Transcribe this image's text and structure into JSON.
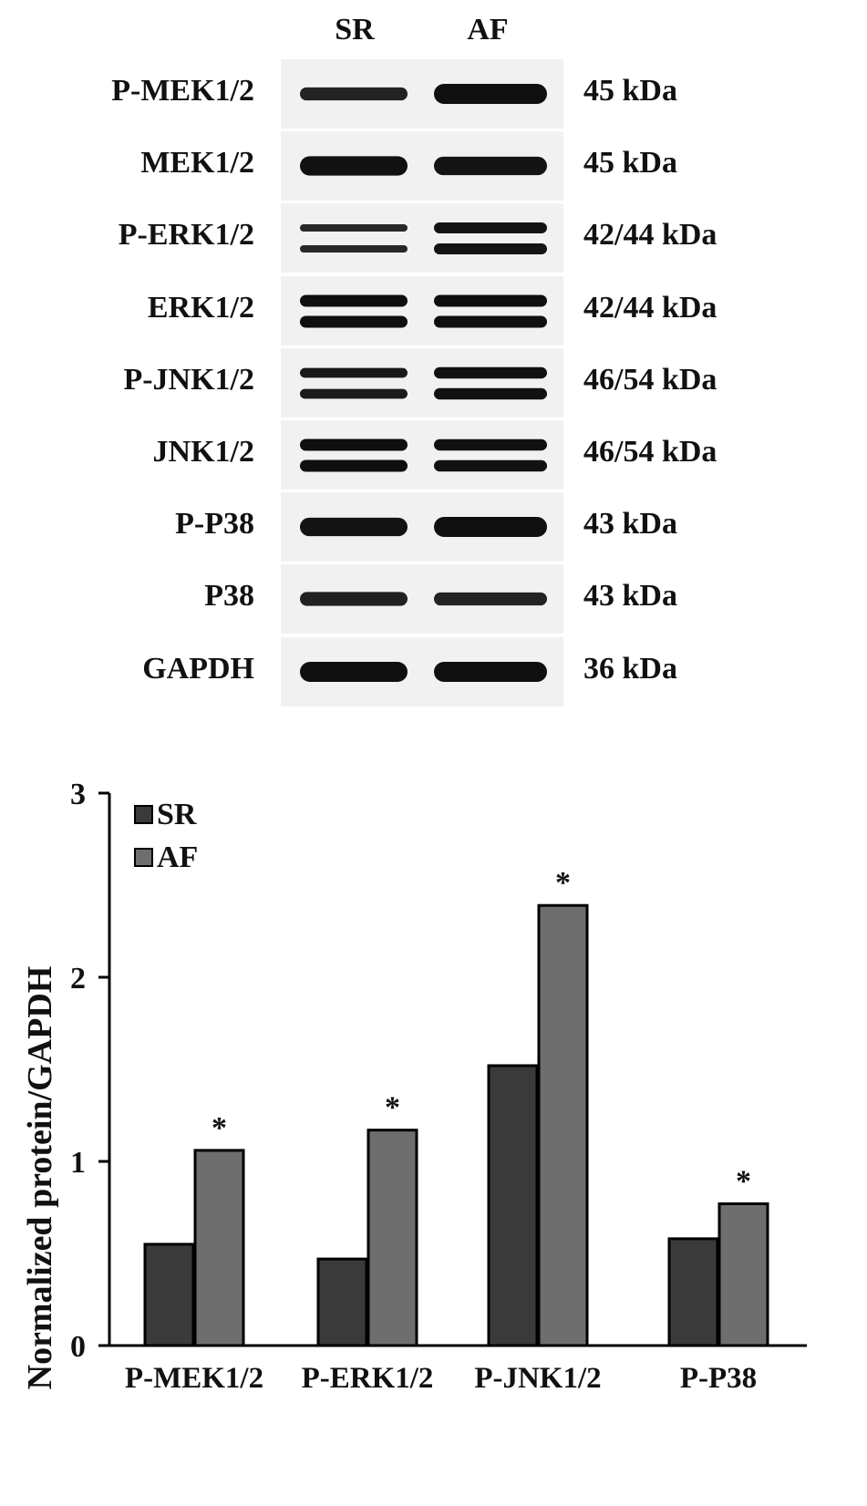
{
  "blot": {
    "lanes": [
      "SR",
      "AF"
    ],
    "rows": [
      {
        "label": "P-MEK1/2",
        "size": "45 kDa",
        "bands": 1,
        "sr": 0.55,
        "af": 1.0
      },
      {
        "label": "MEK1/2",
        "size": "45 kDa",
        "bands": 1,
        "sr": 0.95,
        "af": 0.9
      },
      {
        "label": "P-ERK1/2",
        "size": "42/44 kDa",
        "bands": 2,
        "sr": 0.45,
        "af": 0.9
      },
      {
        "label": "ERK1/2",
        "size": "42/44 kDa",
        "bands": 2,
        "sr": 1.0,
        "af": 1.0
      },
      {
        "label": "P-JNK1/2",
        "size": "46/54 kDa",
        "bands": 2,
        "sr": 0.75,
        "af": 0.95
      },
      {
        "label": "JNK1/2",
        "size": "46/54 kDa",
        "bands": 2,
        "sr": 1.0,
        "af": 0.95
      },
      {
        "label": "P-P38",
        "size": "43 kDa",
        "bands": 1,
        "sr": 0.9,
        "af": 1.0
      },
      {
        "label": "P38",
        "size": "43 kDa",
        "bands": 1,
        "sr": 0.6,
        "af": 0.55
      },
      {
        "label": "GAPDH",
        "size": "36 kDa",
        "bands": 1,
        "sr": 1.0,
        "af": 1.0
      }
    ]
  },
  "chart_data": {
    "type": "bar",
    "categories": [
      "P-MEK1/2",
      "P-ERK1/2",
      "P-JNK1/2",
      "P-P38"
    ],
    "series": [
      {
        "name": "SR",
        "values": [
          0.55,
          0.47,
          1.52,
          0.58
        ],
        "color": "#3a3a3a"
      },
      {
        "name": "AF",
        "values": [
          1.06,
          1.17,
          2.39,
          0.77
        ],
        "color": "#6e6e6e"
      }
    ],
    "significance": [
      "*",
      "*",
      "*",
      "*"
    ],
    "ylabel": "Normalized protein/GAPDH",
    "ylim": [
      0,
      3
    ],
    "yticks": [
      0,
      1,
      2,
      3
    ],
    "legend_position": "top-left",
    "grid": false
  }
}
